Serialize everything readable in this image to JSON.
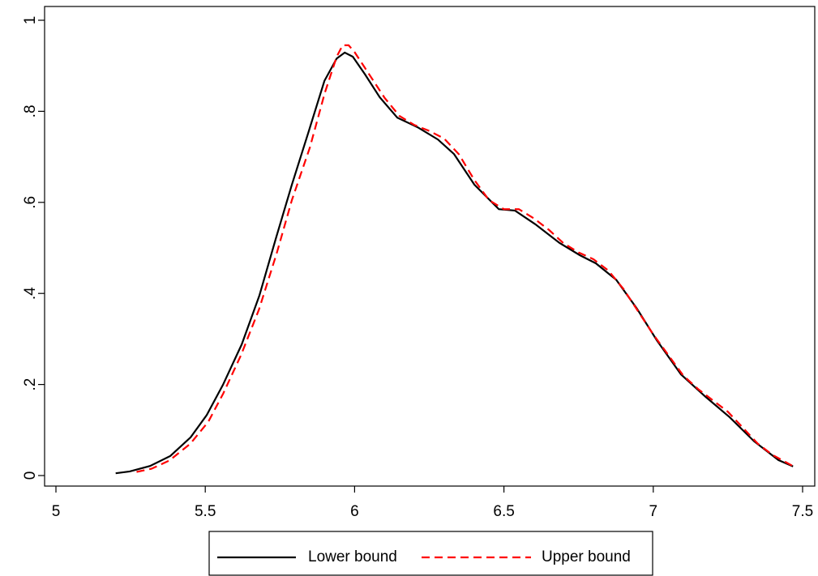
{
  "chart_data": {
    "type": "line",
    "xlim": [
      5,
      7.5
    ],
    "xticks": [
      5,
      5.5,
      6,
      6.5,
      7,
      7.5
    ],
    "ylim": [
      0,
      1
    ],
    "yticks": [
      0,
      {
        "value": 0.2,
        "label": ".2"
      },
      {
        "value": 0.4,
        "label": ".4"
      },
      {
        "value": 0.6,
        "label": ".6"
      },
      {
        "value": 0.8,
        "label": ".8"
      },
      1
    ],
    "legend": "bottom",
    "series": [
      {
        "name": "Lower bound",
        "color": "#000000",
        "dash": false,
        "x": [
          5.2,
          5.247,
          5.315,
          5.383,
          5.451,
          5.505,
          5.559,
          5.622,
          5.681,
          5.736,
          5.79,
          5.844,
          5.899,
          5.94,
          5.967,
          5.994,
          6.035,
          6.084,
          6.143,
          6.211,
          6.279,
          6.333,
          6.401,
          6.483,
          6.537,
          6.605,
          6.686,
          6.754,
          6.808,
          6.876,
          6.944,
          7.012,
          7.093,
          7.175,
          7.256,
          7.338,
          7.419,
          7.468
        ],
        "values": [
          0.005,
          0.009,
          0.021,
          0.043,
          0.084,
          0.133,
          0.199,
          0.288,
          0.395,
          0.52,
          0.639,
          0.751,
          0.867,
          0.916,
          0.929,
          0.92,
          0.881,
          0.831,
          0.786,
          0.765,
          0.738,
          0.706,
          0.639,
          0.585,
          0.582,
          0.552,
          0.511,
          0.484,
          0.466,
          0.43,
          0.368,
          0.297,
          0.222,
          0.173,
          0.128,
          0.075,
          0.034,
          0.02
        ]
      },
      {
        "name": "Upper bound",
        "color": "#ff0000",
        "dash": true,
        "x": [
          5.27,
          5.32,
          5.38,
          5.45,
          5.51,
          5.56,
          5.62,
          5.68,
          5.74,
          5.79,
          5.85,
          5.9,
          5.94,
          5.96,
          5.98,
          6.0,
          6.05,
          6.1,
          6.15,
          6.2,
          6.25,
          6.3,
          6.35,
          6.4,
          6.45,
          6.5,
          6.55,
          6.6,
          6.65,
          6.7,
          6.75,
          6.8,
          6.85,
          6.9,
          6.95,
          7.0,
          7.05,
          7.1,
          7.15,
          7.2,
          7.25,
          7.3,
          7.35,
          7.4,
          7.47
        ],
        "values": [
          0.008,
          0.015,
          0.033,
          0.07,
          0.118,
          0.18,
          0.265,
          0.365,
          0.49,
          0.605,
          0.72,
          0.84,
          0.92,
          0.945,
          0.945,
          0.93,
          0.88,
          0.83,
          0.79,
          0.77,
          0.757,
          0.74,
          0.705,
          0.65,
          0.605,
          0.585,
          0.585,
          0.565,
          0.54,
          0.51,
          0.49,
          0.475,
          0.45,
          0.41,
          0.36,
          0.31,
          0.265,
          0.22,
          0.19,
          0.165,
          0.14,
          0.105,
          0.07,
          0.045,
          0.02
        ]
      }
    ]
  }
}
